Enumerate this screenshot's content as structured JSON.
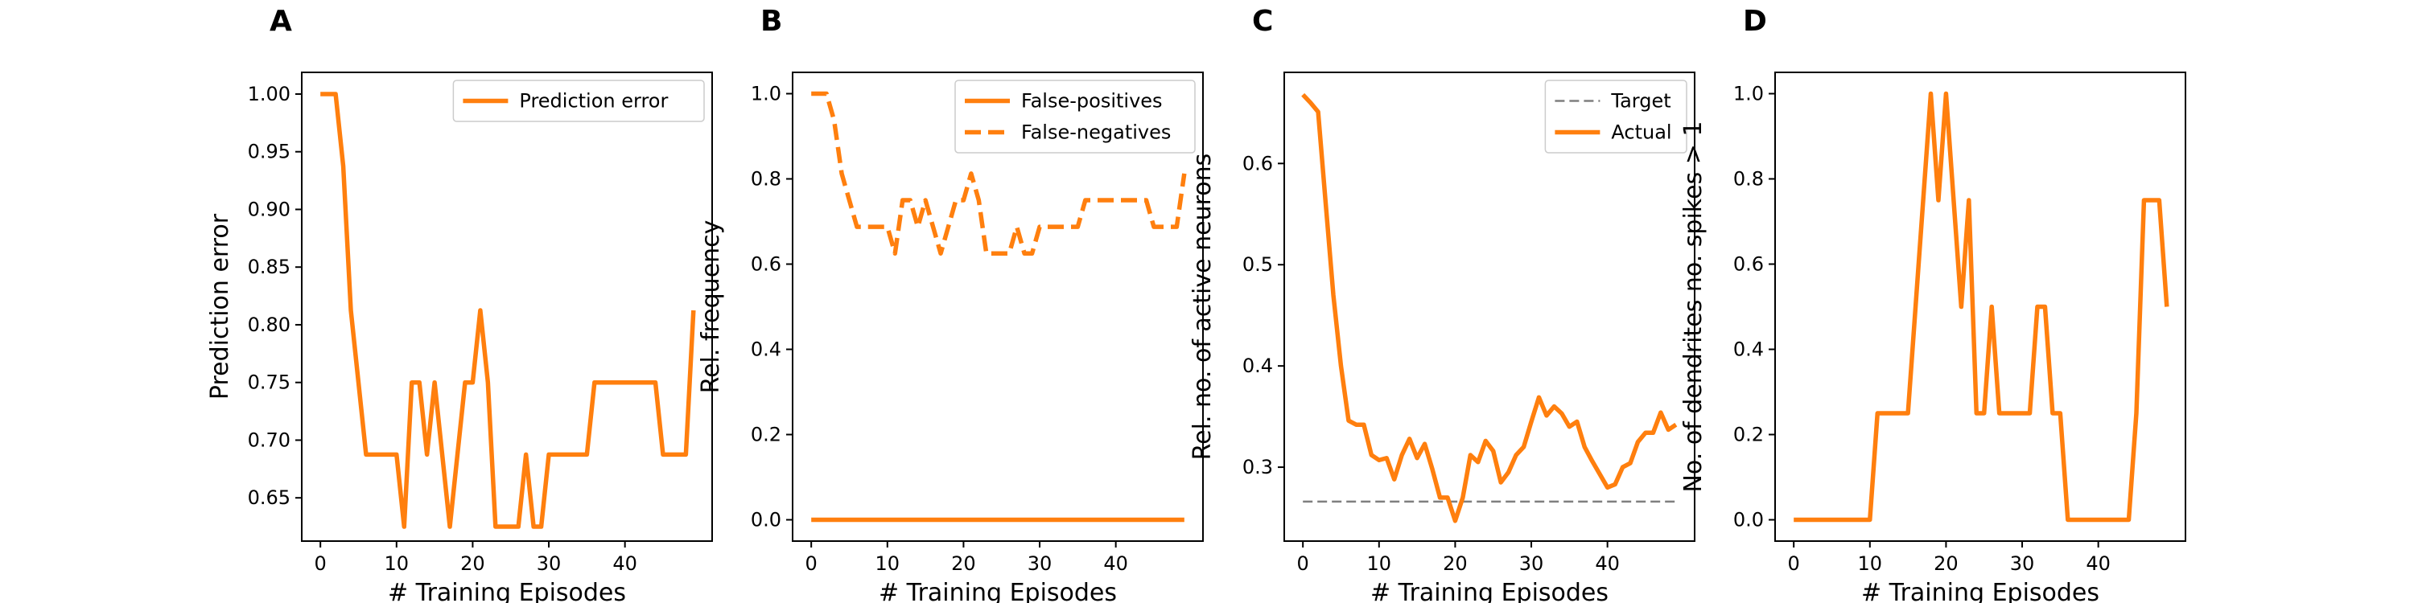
{
  "colors": {
    "orange": "#ff7f0e",
    "gray": "#7f7f7f",
    "axis": "#000000"
  },
  "chart_data": [
    {
      "panel": "A",
      "type": "line",
      "xlabel": "# Training Episodes",
      "ylabel": "Prediction error",
      "xlim": [
        -2.45,
        51.45
      ],
      "ylim": [
        0.6125,
        1.0188
      ],
      "xticks": [
        0,
        10,
        20,
        30,
        40
      ],
      "xtick_labels": [
        "0",
        "10",
        "20",
        "30",
        "40"
      ],
      "yticks": [
        0.65,
        0.7,
        0.75,
        0.8,
        0.85,
        0.9,
        0.95,
        1.0
      ],
      "ytick_labels": [
        "0.65",
        "0.70",
        "0.75",
        "0.80",
        "0.85",
        "0.90",
        "0.95",
        "1.00"
      ],
      "legend": {
        "position": "upper right"
      },
      "series": [
        {
          "name": "Prediction error",
          "style": "solid",
          "color": "#ff7f0e",
          "x": [
            0,
            1,
            2,
            3,
            4,
            5,
            6,
            7,
            8,
            9,
            10,
            11,
            12,
            13,
            14,
            15,
            16,
            17,
            18,
            19,
            20,
            21,
            22,
            23,
            24,
            25,
            26,
            27,
            28,
            29,
            30,
            31,
            32,
            33,
            34,
            35,
            36,
            37,
            38,
            39,
            40,
            41,
            42,
            43,
            44,
            45,
            46,
            47,
            48,
            49
          ],
          "y": [
            1.0,
            1.0,
            1.0,
            0.9375,
            0.8125,
            0.75,
            0.6875,
            0.6875,
            0.6875,
            0.6875,
            0.6875,
            0.625,
            0.75,
            0.75,
            0.6875,
            0.75,
            0.6875,
            0.625,
            0.6875,
            0.75,
            0.75,
            0.8125,
            0.75,
            0.625,
            0.625,
            0.625,
            0.625,
            0.6875,
            0.625,
            0.625,
            0.6875,
            0.6875,
            0.6875,
            0.6875,
            0.6875,
            0.6875,
            0.75,
            0.75,
            0.75,
            0.75,
            0.75,
            0.75,
            0.75,
            0.75,
            0.75,
            0.6875,
            0.6875,
            0.6875,
            0.6875,
            0.8125
          ]
        }
      ]
    },
    {
      "panel": "B",
      "type": "line",
      "xlabel": "# Training Episodes",
      "ylabel": "Rel. frequency",
      "xlim": [
        -2.45,
        51.45
      ],
      "ylim": [
        -0.05,
        1.05
      ],
      "xticks": [
        0,
        10,
        20,
        30,
        40
      ],
      "xtick_labels": [
        "0",
        "10",
        "20",
        "30",
        "40"
      ],
      "yticks": [
        0.0,
        0.2,
        0.4,
        0.6,
        0.8,
        1.0
      ],
      "ytick_labels": [
        "0.0",
        "0.2",
        "0.4",
        "0.6",
        "0.8",
        "1.0"
      ],
      "legend": {
        "position": "upper right"
      },
      "series": [
        {
          "name": "False-positives",
          "style": "solid",
          "color": "#ff7f0e",
          "x": [
            0,
            49
          ],
          "y": [
            0.0,
            0.0
          ]
        },
        {
          "name": "False-negatives",
          "style": "dashed",
          "color": "#ff7f0e",
          "x": [
            0,
            1,
            2,
            3,
            4,
            5,
            6,
            7,
            8,
            9,
            10,
            11,
            12,
            13,
            14,
            15,
            16,
            17,
            18,
            19,
            20,
            21,
            22,
            23,
            24,
            25,
            26,
            27,
            28,
            29,
            30,
            31,
            32,
            33,
            34,
            35,
            36,
            37,
            38,
            39,
            40,
            41,
            42,
            43,
            44,
            45,
            46,
            47,
            48,
            49
          ],
          "y": [
            1.0,
            1.0,
            1.0,
            0.9375,
            0.8125,
            0.75,
            0.6875,
            0.6875,
            0.6875,
            0.6875,
            0.6875,
            0.625,
            0.75,
            0.75,
            0.6875,
            0.75,
            0.6875,
            0.625,
            0.6875,
            0.75,
            0.75,
            0.8125,
            0.75,
            0.625,
            0.625,
            0.625,
            0.625,
            0.6875,
            0.625,
            0.625,
            0.6875,
            0.6875,
            0.6875,
            0.6875,
            0.6875,
            0.6875,
            0.75,
            0.75,
            0.75,
            0.75,
            0.75,
            0.75,
            0.75,
            0.75,
            0.75,
            0.6875,
            0.6875,
            0.6875,
            0.6875,
            0.8125
          ]
        }
      ]
    },
    {
      "panel": "C",
      "type": "line",
      "xlabel": "# Training Episodes",
      "ylabel": "Rel. no. of active neurons",
      "xlim": [
        -2.45,
        51.45
      ],
      "ylim": [
        0.227,
        0.69
      ],
      "xticks": [
        0,
        10,
        20,
        30,
        40
      ],
      "xtick_labels": [
        "0",
        "10",
        "20",
        "30",
        "40"
      ],
      "yticks": [
        0.3,
        0.4,
        0.5,
        0.6
      ],
      "ytick_labels": [
        "0.3",
        "0.4",
        "0.5",
        "0.6"
      ],
      "legend": {
        "position": "upper right"
      },
      "series": [
        {
          "name": "Target",
          "style": "dashed-thin",
          "color": "#7f7f7f",
          "x": [
            0,
            49
          ],
          "y": [
            0.266,
            0.266
          ]
        },
        {
          "name": "Actual",
          "style": "solid",
          "color": "#ff7f0e",
          "x": [
            0,
            1,
            2,
            3,
            4,
            5,
            6,
            7,
            8,
            9,
            10,
            11,
            12,
            13,
            14,
            15,
            16,
            17,
            18,
            19,
            20,
            21,
            22,
            23,
            24,
            25,
            26,
            27,
            28,
            29,
            30,
            31,
            32,
            33,
            34,
            35,
            36,
            37,
            38,
            39,
            40,
            41,
            42,
            43,
            44,
            45,
            46,
            47,
            48,
            49
          ],
          "y": [
            0.668,
            0.66,
            0.651,
            0.56,
            0.47,
            0.4,
            0.346,
            0.342,
            0.342,
            0.312,
            0.307,
            0.309,
            0.288,
            0.312,
            0.328,
            0.309,
            0.323,
            0.298,
            0.27,
            0.27,
            0.247,
            0.27,
            0.312,
            0.305,
            0.326,
            0.316,
            0.285,
            0.295,
            0.312,
            0.32,
            0.345,
            0.369,
            0.351,
            0.36,
            0.353,
            0.34,
            0.345,
            0.32,
            0.306,
            0.293,
            0.28,
            0.283,
            0.3,
            0.304,
            0.325,
            0.334,
            0.334,
            0.354,
            0.337,
            0.342
          ]
        }
      ]
    },
    {
      "panel": "D",
      "type": "line",
      "xlabel": "# Training Episodes",
      "ylabel": "No. of dendrites no. spikes > 1",
      "xlim": [
        -2.45,
        51.45
      ],
      "ylim": [
        -0.05,
        1.05
      ],
      "xticks": [
        0,
        10,
        20,
        30,
        40
      ],
      "xtick_labels": [
        "0",
        "10",
        "20",
        "30",
        "40"
      ],
      "yticks": [
        0.0,
        0.2,
        0.4,
        0.6,
        0.8,
        1.0
      ],
      "ytick_labels": [
        "0.0",
        "0.2",
        "0.4",
        "0.6",
        "0.8",
        "1.0"
      ],
      "series": [
        {
          "style": "solid",
          "color": "#ff7f0e",
          "x": [
            0,
            1,
            2,
            3,
            4,
            5,
            6,
            7,
            8,
            9,
            10,
            11,
            12,
            13,
            14,
            15,
            16,
            17,
            18,
            19,
            20,
            21,
            22,
            23,
            24,
            25,
            26,
            27,
            28,
            29,
            30,
            31,
            32,
            33,
            34,
            35,
            36,
            37,
            38,
            39,
            40,
            41,
            42,
            43,
            44,
            45,
            46,
            47,
            48,
            49
          ],
          "y": [
            0,
            0,
            0,
            0,
            0,
            0,
            0,
            0,
            0,
            0,
            0,
            0.25,
            0.25,
            0.25,
            0.25,
            0.25,
            0.5,
            0.75,
            1.0,
            0.75,
            1.0,
            0.75,
            0.5,
            0.75,
            0.25,
            0.25,
            0.5,
            0.25,
            0.25,
            0.25,
            0.25,
            0.25,
            0.5,
            0.5,
            0.25,
            0.25,
            0,
            0,
            0,
            0,
            0,
            0,
            0,
            0,
            0,
            0.25,
            0.75,
            0.75,
            0.75,
            0.5
          ]
        }
      ]
    }
  ]
}
